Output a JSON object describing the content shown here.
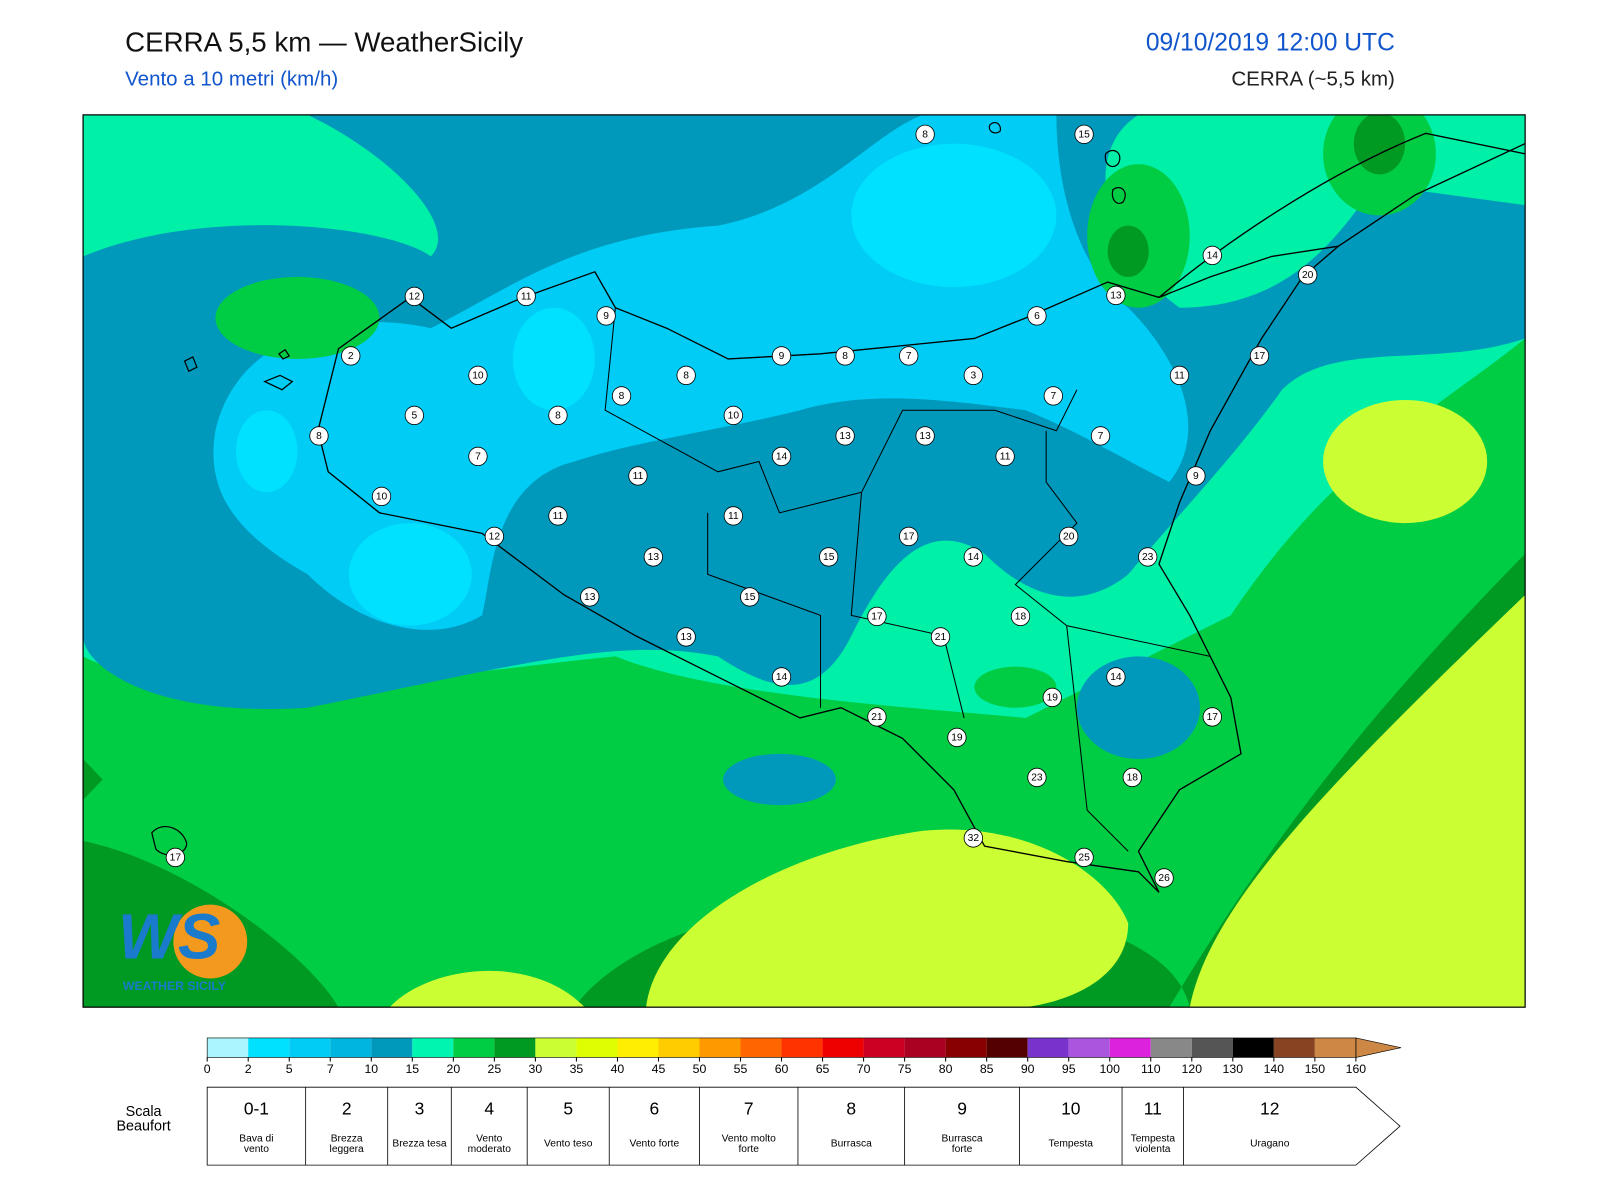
{
  "header": {
    "title": "CERRA 5,5 km — WeatherSicily",
    "subtitle": "Vento a 10 metri (km/h)",
    "datetime": "09/10/2019 12:00 UTC",
    "model": "CERRA (~5,5 km)"
  },
  "map": {
    "stations": [
      {
        "value": 8
      },
      {
        "value": 15
      },
      {
        "value": 14
      },
      {
        "value": 20
      },
      {
        "value": 12
      },
      {
        "value": 11
      },
      {
        "value": 9
      },
      {
        "value": 13
      },
      {
        "value": 6
      },
      {
        "value": 2
      },
      {
        "value": 9
      },
      {
        "value": 8
      },
      {
        "value": 7
      },
      {
        "value": 17
      },
      {
        "value": 10
      },
      {
        "value": 8
      },
      {
        "value": 3
      },
      {
        "value": 11
      },
      {
        "value": 8
      },
      {
        "value": 7
      },
      {
        "value": 5
      },
      {
        "value": 8
      },
      {
        "value": 10
      },
      {
        "value": 8
      },
      {
        "value": 13
      },
      {
        "value": 13
      },
      {
        "value": 7
      },
      {
        "value": 7
      },
      {
        "value": 14
      },
      {
        "value": 11
      },
      {
        "value": 11
      },
      {
        "value": 9
      },
      {
        "value": 10
      },
      {
        "value": 11
      },
      {
        "value": 11
      },
      {
        "value": 12
      },
      {
        "value": 17
      },
      {
        "value": 20
      },
      {
        "value": 13
      },
      {
        "value": 15
      },
      {
        "value": 14
      },
      {
        "value": 23
      },
      {
        "value": 13
      },
      {
        "value": 15
      },
      {
        "value": 17
      },
      {
        "value": 18
      },
      {
        "value": 21
      },
      {
        "value": 13
      },
      {
        "value": 14
      },
      {
        "value": 14
      },
      {
        "value": 19
      },
      {
        "value": 21
      },
      {
        "value": 17
      },
      {
        "value": 19
      },
      {
        "value": 23
      },
      {
        "value": 18
      },
      {
        "value": 17
      },
      {
        "value": 32
      },
      {
        "value": 25
      },
      {
        "value": 26
      }
    ]
  },
  "logo": {
    "initials": "WS",
    "name": "WEATHER SICILY"
  },
  "colorbar": {
    "ticks": [
      0,
      2,
      5,
      7,
      10,
      15,
      20,
      25,
      30,
      35,
      40,
      45,
      50,
      55,
      60,
      65,
      70,
      75,
      80,
      85,
      90,
      95,
      100,
      110,
      120,
      130,
      140,
      150,
      160
    ],
    "colors": [
      "#aaf5ff",
      "#00e0ff",
      "#00ccf5",
      "#00b5e0",
      "#0099bb",
      "#00f5b0",
      "#00cc44",
      "#009922",
      "#ccff33",
      "#ddff00",
      "#ffee00",
      "#ffcc00",
      "#ff9900",
      "#ff6600",
      "#ff3300",
      "#ee0000",
      "#cc0022",
      "#aa0022",
      "#880000",
      "#550000",
      "#7733cc",
      "#aa55dd",
      "#dd22dd",
      "#888888",
      "#555555",
      "#000000",
      "#884422",
      "#cc8844",
      "#cc8844"
    ]
  },
  "beaufort": {
    "label": "Scala Beaufort",
    "levels": [
      {
        "force": "0-1",
        "description": "Bava di vento"
      },
      {
        "force": 2,
        "description": "Brezza leggera"
      },
      {
        "force": 3,
        "description": "Brezza tesa"
      },
      {
        "force": 4,
        "description": "Vento moderato"
      },
      {
        "force": 5,
        "description": "Vento teso"
      },
      {
        "force": 6,
        "description": "Vento forte"
      },
      {
        "force": 7,
        "description": "Vento molto forte"
      },
      {
        "force": 8,
        "description": "Burrasca"
      },
      {
        "force": 9,
        "description": "Burrasca forte"
      },
      {
        "force": 10,
        "description": "Tempesta"
      },
      {
        "force": 11,
        "description": "Tempesta violenta"
      },
      {
        "force": 12,
        "description": "Uragano"
      }
    ]
  }
}
